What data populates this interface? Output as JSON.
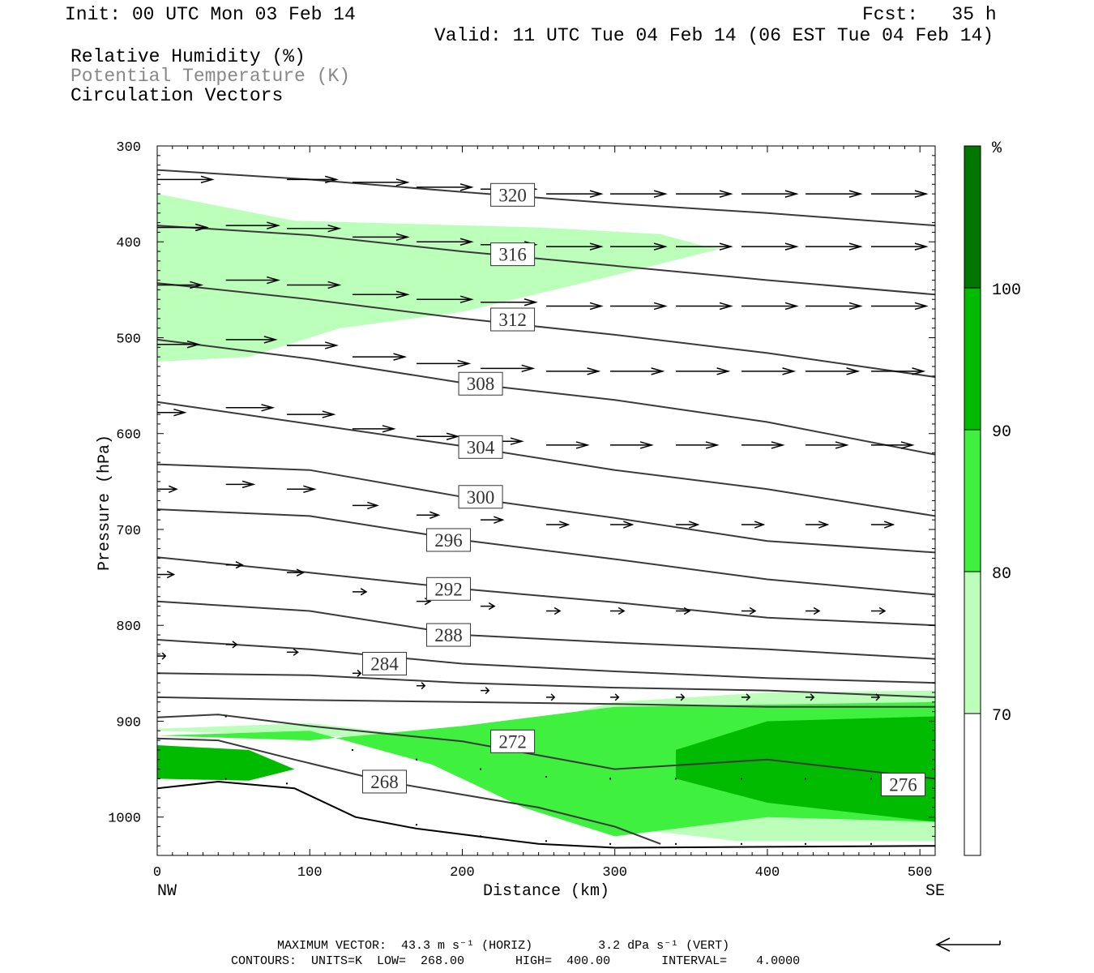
{
  "header": {
    "init": "Init: 00 UTC Mon 03 Feb 14",
    "fcst": "Fcst:   35 h",
    "valid": "Valid: 11 UTC Tue 04 Feb 14 (06 EST Tue 04 Feb 14)",
    "fields": [
      "Relative Humidity (%)",
      "Potential Temperature (K)",
      "Circulation Vectors"
    ]
  },
  "footer": {
    "max_vector": "MAXIMUM VECTOR:  43.3 m s⁻¹ (HORIZ)         3.2 dPa s⁻¹ (VERT)",
    "contours": "CONTOURS:  UNITS=K  LOW=  268.00       HIGH=  400.00       INTERVAL=    4.0000"
  },
  "colors": {
    "rh_70_80": "#bbffbb",
    "rh_80_90": "#3ff03f",
    "rh_90_100": "#00bb00",
    "rh_100": "#007700",
    "theta_contour": "#3a3a3a",
    "vector": "#000000"
  },
  "chart_data": {
    "type": "cross-section",
    "xlabel": "Distance (km)",
    "ylabel": "Pressure (hPa)",
    "xlim": [
      0,
      510
    ],
    "ylim": [
      1040,
      300
    ],
    "x_ticks": [
      0,
      100,
      200,
      300,
      400,
      500
    ],
    "y_ticks": [
      300,
      400,
      500,
      600,
      700,
      800,
      900,
      1000
    ],
    "x_end_labels": {
      "left": "NW",
      "right": "SE"
    },
    "colorbar": {
      "unit": "%",
      "levels": [
        70,
        80,
        90,
        100
      ],
      "colors": [
        "#ffffff",
        "#bbffbb",
        "#3ff03f",
        "#00bb00",
        "#007700"
      ]
    },
    "contour_labels": [
      {
        "value": "320",
        "x": 233,
        "p": 351
      },
      {
        "value": "316",
        "x": 233,
        "p": 413
      },
      {
        "value": "312",
        "x": 233,
        "p": 481
      },
      {
        "value": "308",
        "x": 212,
        "p": 548
      },
      {
        "value": "304",
        "x": 212,
        "p": 614
      },
      {
        "value": "300",
        "x": 212,
        "p": 666
      },
      {
        "value": "296",
        "x": 191,
        "p": 711
      },
      {
        "value": "292",
        "x": 191,
        "p": 762
      },
      {
        "value": "288",
        "x": 191,
        "p": 810
      },
      {
        "value": "284",
        "x": 149,
        "p": 840
      },
      {
        "value": "272",
        "x": 233,
        "p": 921
      },
      {
        "value": "268",
        "x": 149,
        "p": 963
      },
      {
        "value": "276",
        "x": 489,
        "p": 966
      }
    ],
    "isentropes": [
      {
        "theta": 320,
        "x": [
          0,
          100,
          200,
          300,
          400,
          510
        ],
        "p": [
          325,
          335,
          348,
          360,
          370,
          383
        ]
      },
      {
        "theta": 316,
        "x": [
          0,
          100,
          200,
          300,
          400,
          510
        ],
        "p": [
          383,
          393,
          410,
          425,
          440,
          455
        ]
      },
      {
        "theta": 312,
        "x": [
          0,
          100,
          200,
          300,
          400,
          510
        ],
        "p": [
          443,
          460,
          480,
          497,
          516,
          541
        ]
      },
      {
        "theta": 308,
        "x": [
          0,
          100,
          200,
          300,
          400,
          510
        ],
        "p": [
          502,
          522,
          547,
          565,
          588,
          622
        ]
      },
      {
        "theta": 304,
        "x": [
          0,
          100,
          200,
          300,
          400,
          510
        ],
        "p": [
          567,
          590,
          613,
          638,
          658,
          686
        ]
      },
      {
        "theta": 300,
        "x": [
          0,
          100,
          200,
          300,
          400,
          510
        ],
        "p": [
          632,
          638,
          666,
          688,
          712,
          724
        ]
      },
      {
        "theta": 296,
        "x": [
          0,
          100,
          200,
          300,
          400,
          510
        ],
        "p": [
          679,
          686,
          711,
          731,
          752,
          768
        ]
      },
      {
        "theta": 292,
        "x": [
          0,
          100,
          200,
          300,
          400,
          510
        ],
        "p": [
          729,
          745,
          762,
          776,
          792,
          800
        ]
      },
      {
        "theta": 288,
        "x": [
          0,
          100,
          200,
          300,
          400,
          510
        ],
        "p": [
          775,
          785,
          810,
          818,
          825,
          835
        ]
      },
      {
        "theta": 284,
        "x": [
          0,
          100,
          200,
          300,
          400,
          510
        ],
        "p": [
          815,
          825,
          840,
          848,
          855,
          860
        ]
      },
      {
        "theta": 280,
        "x": [
          0,
          100,
          200,
          300,
          400,
          510
        ],
        "p": [
          850,
          852,
          860,
          865,
          868,
          875
        ]
      },
      {
        "theta": 276,
        "x": [
          0,
          100,
          200,
          300,
          400,
          510
        ],
        "p": [
          875,
          878,
          880,
          882,
          885,
          885
        ]
      },
      {
        "theta": 272,
        "x": [
          0,
          40,
          100,
          200,
          300,
          400,
          510
        ],
        "p": [
          896,
          893,
          905,
          921,
          950,
          940,
          960
        ]
      },
      {
        "theta": 268,
        "x": [
          0,
          40,
          90,
          150,
          250,
          300,
          330
        ],
        "p": [
          918,
          920,
          940,
          963,
          990,
          1010,
          1028
        ]
      }
    ],
    "surface_pressure": {
      "x": [
        0,
        40,
        90,
        130,
        170,
        210,
        250,
        300,
        400,
        510
      ],
      "p": [
        970,
        963,
        970,
        1000,
        1012,
        1020,
        1028,
        1032,
        1031,
        1030
      ]
    },
    "humidity_regions": [
      {
        "level": 70,
        "x": [
          0,
          90,
          250,
          330,
          360,
          370,
          300,
          200,
          120,
          60,
          0
        ],
        "p": [
          350,
          378,
          385,
          392,
          405,
          407,
          435,
          473,
          490,
          520,
          525
        ]
      },
      {
        "level": 70,
        "x": [
          0,
          100,
          200,
          250,
          300,
          380,
          510,
          510,
          400,
          300,
          200,
          100,
          0
        ],
        "p": [
          908,
          902,
          920,
          955,
          1010,
          1025,
          1025,
          868,
          870,
          880,
          920,
          915,
          910
        ]
      },
      {
        "level": 80,
        "x": [
          0,
          100,
          180,
          240,
          300,
          400,
          510,
          510,
          300,
          200,
          100,
          0
        ],
        "p": [
          915,
          910,
          945,
          990,
          1020,
          1000,
          1005,
          880,
          885,
          905,
          920,
          915
        ]
      },
      {
        "level": 90,
        "x": [
          0,
          60,
          90,
          60,
          0
        ],
        "p": [
          925,
          930,
          950,
          962,
          960
        ]
      },
      {
        "level": 90,
        "x": [
          340,
          400,
          510,
          510,
          400,
          340
        ],
        "p": [
          930,
          900,
          895,
          1005,
          985,
          960
        ]
      }
    ],
    "vectors": [
      {
        "x": 0,
        "p": 335,
        "u": 40
      },
      {
        "x": 85,
        "p": 335,
        "u": 36
      },
      {
        "x": 128,
        "p": 338,
        "u": 40
      },
      {
        "x": 170,
        "p": 343,
        "u": 40
      },
      {
        "x": 212,
        "p": 345,
        "u": 40
      },
      {
        "x": 255,
        "p": 350,
        "u": 40
      },
      {
        "x": 297,
        "p": 350,
        "u": 40
      },
      {
        "x": 340,
        "p": 350,
        "u": 40
      },
      {
        "x": 383,
        "p": 350,
        "u": 40
      },
      {
        "x": 425,
        "p": 350,
        "u": 40
      },
      {
        "x": 468,
        "p": 350,
        "u": 40
      },
      {
        "x": 0,
        "p": 385,
        "u": 36
      },
      {
        "x": 45,
        "p": 383,
        "u": 38
      },
      {
        "x": 85,
        "p": 386,
        "u": 38
      },
      {
        "x": 128,
        "p": 395,
        "u": 40
      },
      {
        "x": 170,
        "p": 400,
        "u": 40
      },
      {
        "x": 212,
        "p": 403,
        "u": 40
      },
      {
        "x": 255,
        "p": 405,
        "u": 40
      },
      {
        "x": 297,
        "p": 405,
        "u": 40
      },
      {
        "x": 340,
        "p": 405,
        "u": 40
      },
      {
        "x": 383,
        "p": 405,
        "u": 40
      },
      {
        "x": 425,
        "p": 405,
        "u": 40
      },
      {
        "x": 468,
        "p": 405,
        "u": 40
      },
      {
        "x": 0,
        "p": 445,
        "u": 32
      },
      {
        "x": 45,
        "p": 440,
        "u": 38
      },
      {
        "x": 85,
        "p": 445,
        "u": 38
      },
      {
        "x": 128,
        "p": 455,
        "u": 40
      },
      {
        "x": 170,
        "p": 460,
        "u": 40
      },
      {
        "x": 212,
        "p": 463,
        "u": 40
      },
      {
        "x": 255,
        "p": 467,
        "u": 40
      },
      {
        "x": 297,
        "p": 467,
        "u": 40
      },
      {
        "x": 340,
        "p": 467,
        "u": 40
      },
      {
        "x": 383,
        "p": 467,
        "u": 40
      },
      {
        "x": 425,
        "p": 467,
        "u": 40
      },
      {
        "x": 468,
        "p": 467,
        "u": 40
      },
      {
        "x": 0,
        "p": 507,
        "u": 30
      },
      {
        "x": 45,
        "p": 502,
        "u": 36
      },
      {
        "x": 85,
        "p": 508,
        "u": 36
      },
      {
        "x": 128,
        "p": 520,
        "u": 38
      },
      {
        "x": 170,
        "p": 527,
        "u": 38
      },
      {
        "x": 212,
        "p": 532,
        "u": 38
      },
      {
        "x": 255,
        "p": 535,
        "u": 38
      },
      {
        "x": 297,
        "p": 535,
        "u": 38
      },
      {
        "x": 340,
        "p": 535,
        "u": 38
      },
      {
        "x": 383,
        "p": 535,
        "u": 38
      },
      {
        "x": 425,
        "p": 535,
        "u": 38
      },
      {
        "x": 468,
        "p": 535,
        "u": 38
      },
      {
        "x": 0,
        "p": 578,
        "u": 20
      },
      {
        "x": 45,
        "p": 573,
        "u": 34
      },
      {
        "x": 85,
        "p": 580,
        "u": 34
      },
      {
        "x": 128,
        "p": 595,
        "u": 30
      },
      {
        "x": 170,
        "p": 603,
        "u": 30
      },
      {
        "x": 212,
        "p": 608,
        "u": 30
      },
      {
        "x": 255,
        "p": 612,
        "u": 30
      },
      {
        "x": 297,
        "p": 612,
        "u": 30
      },
      {
        "x": 340,
        "p": 612,
        "u": 30
      },
      {
        "x": 383,
        "p": 612,
        "u": 30
      },
      {
        "x": 425,
        "p": 612,
        "u": 30
      },
      {
        "x": 468,
        "p": 612,
        "u": 30
      },
      {
        "x": 0,
        "p": 658,
        "u": 14
      },
      {
        "x": 45,
        "p": 653,
        "u": 20
      },
      {
        "x": 85,
        "p": 658,
        "u": 20
      },
      {
        "x": 128,
        "p": 675,
        "u": 18
      },
      {
        "x": 170,
        "p": 685,
        "u": 16
      },
      {
        "x": 212,
        "p": 690,
        "u": 16
      },
      {
        "x": 255,
        "p": 695,
        "u": 16
      },
      {
        "x": 297,
        "p": 695,
        "u": 16
      },
      {
        "x": 340,
        "p": 695,
        "u": 16
      },
      {
        "x": 383,
        "p": 695,
        "u": 16
      },
      {
        "x": 425,
        "p": 695,
        "u": 16
      },
      {
        "x": 468,
        "p": 695,
        "u": 16
      },
      {
        "x": 0,
        "p": 747,
        "u": 12
      },
      {
        "x": 45,
        "p": 737,
        "u": 12
      },
      {
        "x": 85,
        "p": 745,
        "u": 12
      },
      {
        "x": 128,
        "p": 765,
        "u": 10
      },
      {
        "x": 170,
        "p": 775,
        "u": 10
      },
      {
        "x": 212,
        "p": 780,
        "u": 10
      },
      {
        "x": 255,
        "p": 785,
        "u": 10
      },
      {
        "x": 297,
        "p": 785,
        "u": 10
      },
      {
        "x": 340,
        "p": 785,
        "u": 10
      },
      {
        "x": 383,
        "p": 785,
        "u": 10
      },
      {
        "x": 425,
        "p": 785,
        "u": 10
      },
      {
        "x": 468,
        "p": 785,
        "u": 10
      },
      {
        "x": 0,
        "p": 832,
        "u": 6
      },
      {
        "x": 45,
        "p": 820,
        "u": 8
      },
      {
        "x": 85,
        "p": 828,
        "u": 8
      },
      {
        "x": 128,
        "p": 850,
        "u": 6
      },
      {
        "x": 170,
        "p": 863,
        "u": 6
      },
      {
        "x": 212,
        "p": 868,
        "u": 6
      },
      {
        "x": 255,
        "p": 875,
        "u": 6
      },
      {
        "x": 297,
        "p": 875,
        "u": 6
      },
      {
        "x": 340,
        "p": 875,
        "u": 6
      },
      {
        "x": 383,
        "p": 875,
        "u": 6
      },
      {
        "x": 425,
        "p": 875,
        "u": 6
      },
      {
        "x": 468,
        "p": 875,
        "u": 6
      },
      {
        "x": 45,
        "p": 895,
        "u": 2
      },
      {
        "x": 128,
        "p": 930,
        "u": 2
      },
      {
        "x": 170,
        "p": 940,
        "u": 2
      },
      {
        "x": 212,
        "p": 950,
        "u": 2
      },
      {
        "x": 255,
        "p": 958,
        "u": 2
      },
      {
        "x": 297,
        "p": 960,
        "u": 2
      },
      {
        "x": 340,
        "p": 960,
        "u": 2
      },
      {
        "x": 383,
        "p": 960,
        "u": 2
      },
      {
        "x": 425,
        "p": 960,
        "u": 2
      },
      {
        "x": 468,
        "p": 960,
        "u": 2
      },
      {
        "x": 45,
        "p": 960,
        "u": 1
      },
      {
        "x": 85,
        "p": 965,
        "u": 1
      },
      {
        "x": 170,
        "p": 1008,
        "u": 1
      },
      {
        "x": 212,
        "p": 1020,
        "u": 1
      },
      {
        "x": 255,
        "p": 1025,
        "u": 1
      },
      {
        "x": 297,
        "p": 1028,
        "u": 1
      },
      {
        "x": 340,
        "p": 1028,
        "u": 1
      },
      {
        "x": 383,
        "p": 1028,
        "u": 1
      },
      {
        "x": 425,
        "p": 1028,
        "u": 1
      },
      {
        "x": 468,
        "p": 1028,
        "u": 1
      }
    ]
  }
}
